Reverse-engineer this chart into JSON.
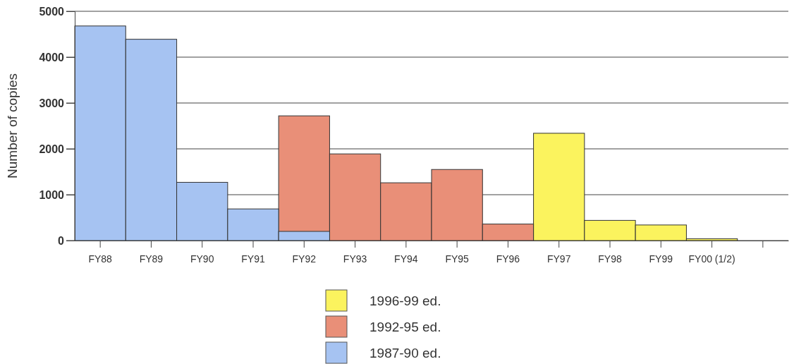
{
  "chart_data": {
    "type": "bar",
    "ylabel": "Number of copies",
    "categories": [
      "FY88",
      "FY89",
      "FY90",
      "FY91",
      "FY92",
      "FY93",
      "FY94",
      "FY95",
      "FY96",
      "FY97",
      "FY98",
      "FY99",
      "FY00 (1/2)",
      null
    ],
    "series": [
      {
        "name": "1996-99 ed.",
        "color": "#fbf35e",
        "values": [
          null,
          null,
          null,
          null,
          null,
          null,
          null,
          null,
          null,
          2340,
          440,
          340,
          40,
          null
        ]
      },
      {
        "name": "1992-95 ed.",
        "color": "#e98f78",
        "values": [
          null,
          null,
          null,
          null,
          2720,
          1890,
          1260,
          1550,
          360,
          null,
          null,
          null,
          null,
          null
        ]
      },
      {
        "name": "1987-90 ed.",
        "color": "#a6c3f2",
        "values": [
          4680,
          4390,
          1270,
          690,
          200,
          null,
          null,
          null,
          null,
          null,
          null,
          null,
          null,
          null
        ]
      }
    ],
    "ylim": [
      0,
      5000
    ],
    "yticks": [
      0,
      1000,
      2000,
      3000,
      4000,
      5000
    ],
    "grid": "y",
    "legend": "bottom"
  }
}
